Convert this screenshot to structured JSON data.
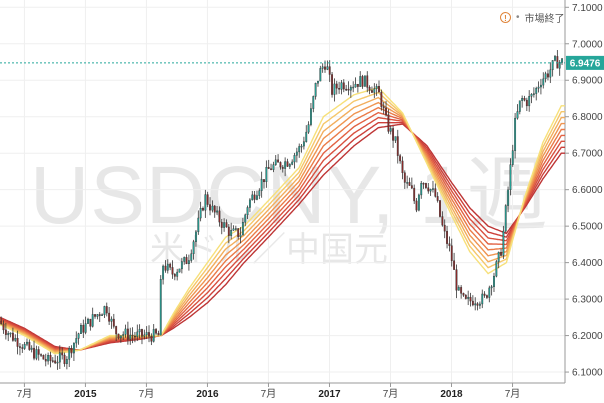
{
  "status": {
    "icon": "info-circle-icon",
    "text": "市場終了"
  },
  "watermark": {
    "symbol": "USDCNY, 1週",
    "description": "米ドル／中国元"
  },
  "last_price": {
    "label": "6.9476",
    "value": 6.9476,
    "color": "#26a69a"
  },
  "colors": {
    "up": "#26a69a",
    "down": "#8b2a2a",
    "wick": "#333333",
    "ma_ramp": [
      "#f7e07a",
      "#f5c76a",
      "#f2ad5c",
      "#ef9450",
      "#ea7b48",
      "#e26243",
      "#d8503f",
      "#cc403a",
      "#be3535"
    ]
  },
  "chart_data": {
    "type": "candlestick",
    "title": "USDCNY, 1週",
    "subtitle": "米ドル／中国元",
    "ylim": [
      6.07,
      7.12
    ],
    "xlim": [
      2014.3,
      2018.93
    ],
    "y_ticks": [
      {
        "value": 6.1,
        "label": "6.1000"
      },
      {
        "value": 6.2,
        "label": "6.2000"
      },
      {
        "value": 6.3,
        "label": "6.3000"
      },
      {
        "value": 6.4,
        "label": "6.4000"
      },
      {
        "value": 6.5,
        "label": "6.5000"
      },
      {
        "value": 6.6,
        "label": "6.6000"
      },
      {
        "value": 6.7,
        "label": "6.7000"
      },
      {
        "value": 6.8,
        "label": "6.8000"
      },
      {
        "value": 6.9,
        "label": "6.9000"
      },
      {
        "value": 7.0,
        "label": "7.0000"
      },
      {
        "value": 7.1,
        "label": "7.1000"
      }
    ],
    "x_ticks": [
      {
        "value": 2014.5,
        "label": "7月",
        "bold": false
      },
      {
        "value": 2015.0,
        "label": "2015",
        "bold": true
      },
      {
        "value": 2015.5,
        "label": "7月",
        "bold": false
      },
      {
        "value": 2016.0,
        "label": "2016",
        "bold": true
      },
      {
        "value": 2016.5,
        "label": "7月",
        "bold": false
      },
      {
        "value": 2017.0,
        "label": "2017",
        "bold": true
      },
      {
        "value": 2017.5,
        "label": "7月",
        "bold": false
      },
      {
        "value": 2018.0,
        "label": "2018",
        "bold": true
      },
      {
        "value": 2018.5,
        "label": "7月",
        "bold": false
      }
    ],
    "price_path": [
      [
        2014.3,
        6.24
      ],
      [
        2014.4,
        6.2
      ],
      [
        2014.55,
        6.16
      ],
      [
        2014.7,
        6.13
      ],
      [
        2014.85,
        6.14
      ],
      [
        2014.96,
        6.21
      ],
      [
        2015.08,
        6.25
      ],
      [
        2015.18,
        6.28
      ],
      [
        2015.25,
        6.21
      ],
      [
        2015.4,
        6.2
      ],
      [
        2015.55,
        6.2
      ],
      [
        2015.62,
        6.2
      ],
      [
        2015.63,
        6.4
      ],
      [
        2015.72,
        6.37
      ],
      [
        2015.85,
        6.41
      ],
      [
        2015.92,
        6.49
      ],
      [
        2015.99,
        6.58
      ],
      [
        2016.04,
        6.55
      ],
      [
        2016.1,
        6.52
      ],
      [
        2016.2,
        6.48
      ],
      [
        2016.28,
        6.48
      ],
      [
        2016.34,
        6.56
      ],
      [
        2016.45,
        6.62
      ],
      [
        2016.52,
        6.66
      ],
      [
        2016.6,
        6.67
      ],
      [
        2016.68,
        6.68
      ],
      [
        2016.78,
        6.72
      ],
      [
        2016.84,
        6.78
      ],
      [
        2016.9,
        6.89
      ],
      [
        2016.94,
        6.93
      ],
      [
        2016.98,
        6.95
      ],
      [
        2017.03,
        6.87
      ],
      [
        2017.1,
        6.89
      ],
      [
        2017.2,
        6.89
      ],
      [
        2017.28,
        6.9
      ],
      [
        2017.36,
        6.88
      ],
      [
        2017.42,
        6.86
      ],
      [
        2017.48,
        6.78
      ],
      [
        2017.55,
        6.73
      ],
      [
        2017.62,
        6.62
      ],
      [
        2017.68,
        6.6
      ],
      [
        2017.72,
        6.55
      ],
      [
        2017.76,
        6.63
      ],
      [
        2017.82,
        6.61
      ],
      [
        2017.88,
        6.58
      ],
      [
        2017.94,
        6.49
      ],
      [
        2018.0,
        6.43
      ],
      [
        2018.06,
        6.32
      ],
      [
        2018.12,
        6.29
      ],
      [
        2018.2,
        6.3
      ],
      [
        2018.28,
        6.3
      ],
      [
        2018.36,
        6.37
      ],
      [
        2018.42,
        6.44
      ],
      [
        2018.48,
        6.62
      ],
      [
        2018.53,
        6.78
      ],
      [
        2018.58,
        6.85
      ],
      [
        2018.62,
        6.84
      ],
      [
        2018.68,
        6.86
      ],
      [
        2018.74,
        6.9
      ],
      [
        2018.8,
        6.92
      ],
      [
        2018.86,
        6.95
      ],
      [
        2018.9,
        6.95
      ]
    ],
    "ma_fast": [
      [
        2014.3,
        6.23
      ],
      [
        2014.5,
        6.2
      ],
      [
        2014.75,
        6.15
      ],
      [
        2014.95,
        6.16
      ],
      [
        2015.2,
        6.2
      ],
      [
        2015.45,
        6.2
      ],
      [
        2015.62,
        6.2
      ],
      [
        2015.72,
        6.26
      ],
      [
        2015.85,
        6.33
      ],
      [
        2016.0,
        6.4
      ],
      [
        2016.15,
        6.47
      ],
      [
        2016.3,
        6.5
      ],
      [
        2016.5,
        6.57
      ],
      [
        2016.75,
        6.66
      ],
      [
        2016.95,
        6.8
      ],
      [
        2017.2,
        6.86
      ],
      [
        2017.4,
        6.88
      ],
      [
        2017.6,
        6.81
      ],
      [
        2017.8,
        6.67
      ],
      [
        2018.0,
        6.53
      ],
      [
        2018.15,
        6.43
      ],
      [
        2018.3,
        6.37
      ],
      [
        2018.45,
        6.4
      ],
      [
        2018.6,
        6.58
      ],
      [
        2018.75,
        6.73
      ],
      [
        2018.9,
        6.83
      ]
    ],
    "ma_slow": [
      [
        2014.3,
        6.25
      ],
      [
        2014.5,
        6.22
      ],
      [
        2014.75,
        6.17
      ],
      [
        2014.95,
        6.16
      ],
      [
        2015.2,
        6.18
      ],
      [
        2015.45,
        6.19
      ],
      [
        2015.62,
        6.2
      ],
      [
        2015.72,
        6.22
      ],
      [
        2015.85,
        6.25
      ],
      [
        2016.0,
        6.29
      ],
      [
        2016.15,
        6.34
      ],
      [
        2016.3,
        6.4
      ],
      [
        2016.5,
        6.47
      ],
      [
        2016.75,
        6.56
      ],
      [
        2016.95,
        6.64
      ],
      [
        2017.2,
        6.72
      ],
      [
        2017.4,
        6.77
      ],
      [
        2017.6,
        6.78
      ],
      [
        2017.8,
        6.72
      ],
      [
        2018.0,
        6.62
      ],
      [
        2018.15,
        6.55
      ],
      [
        2018.3,
        6.5
      ],
      [
        2018.45,
        6.48
      ],
      [
        2018.6,
        6.55
      ],
      [
        2018.75,
        6.63
      ],
      [
        2018.9,
        6.7
      ]
    ],
    "grid": true,
    "legend": "none"
  }
}
